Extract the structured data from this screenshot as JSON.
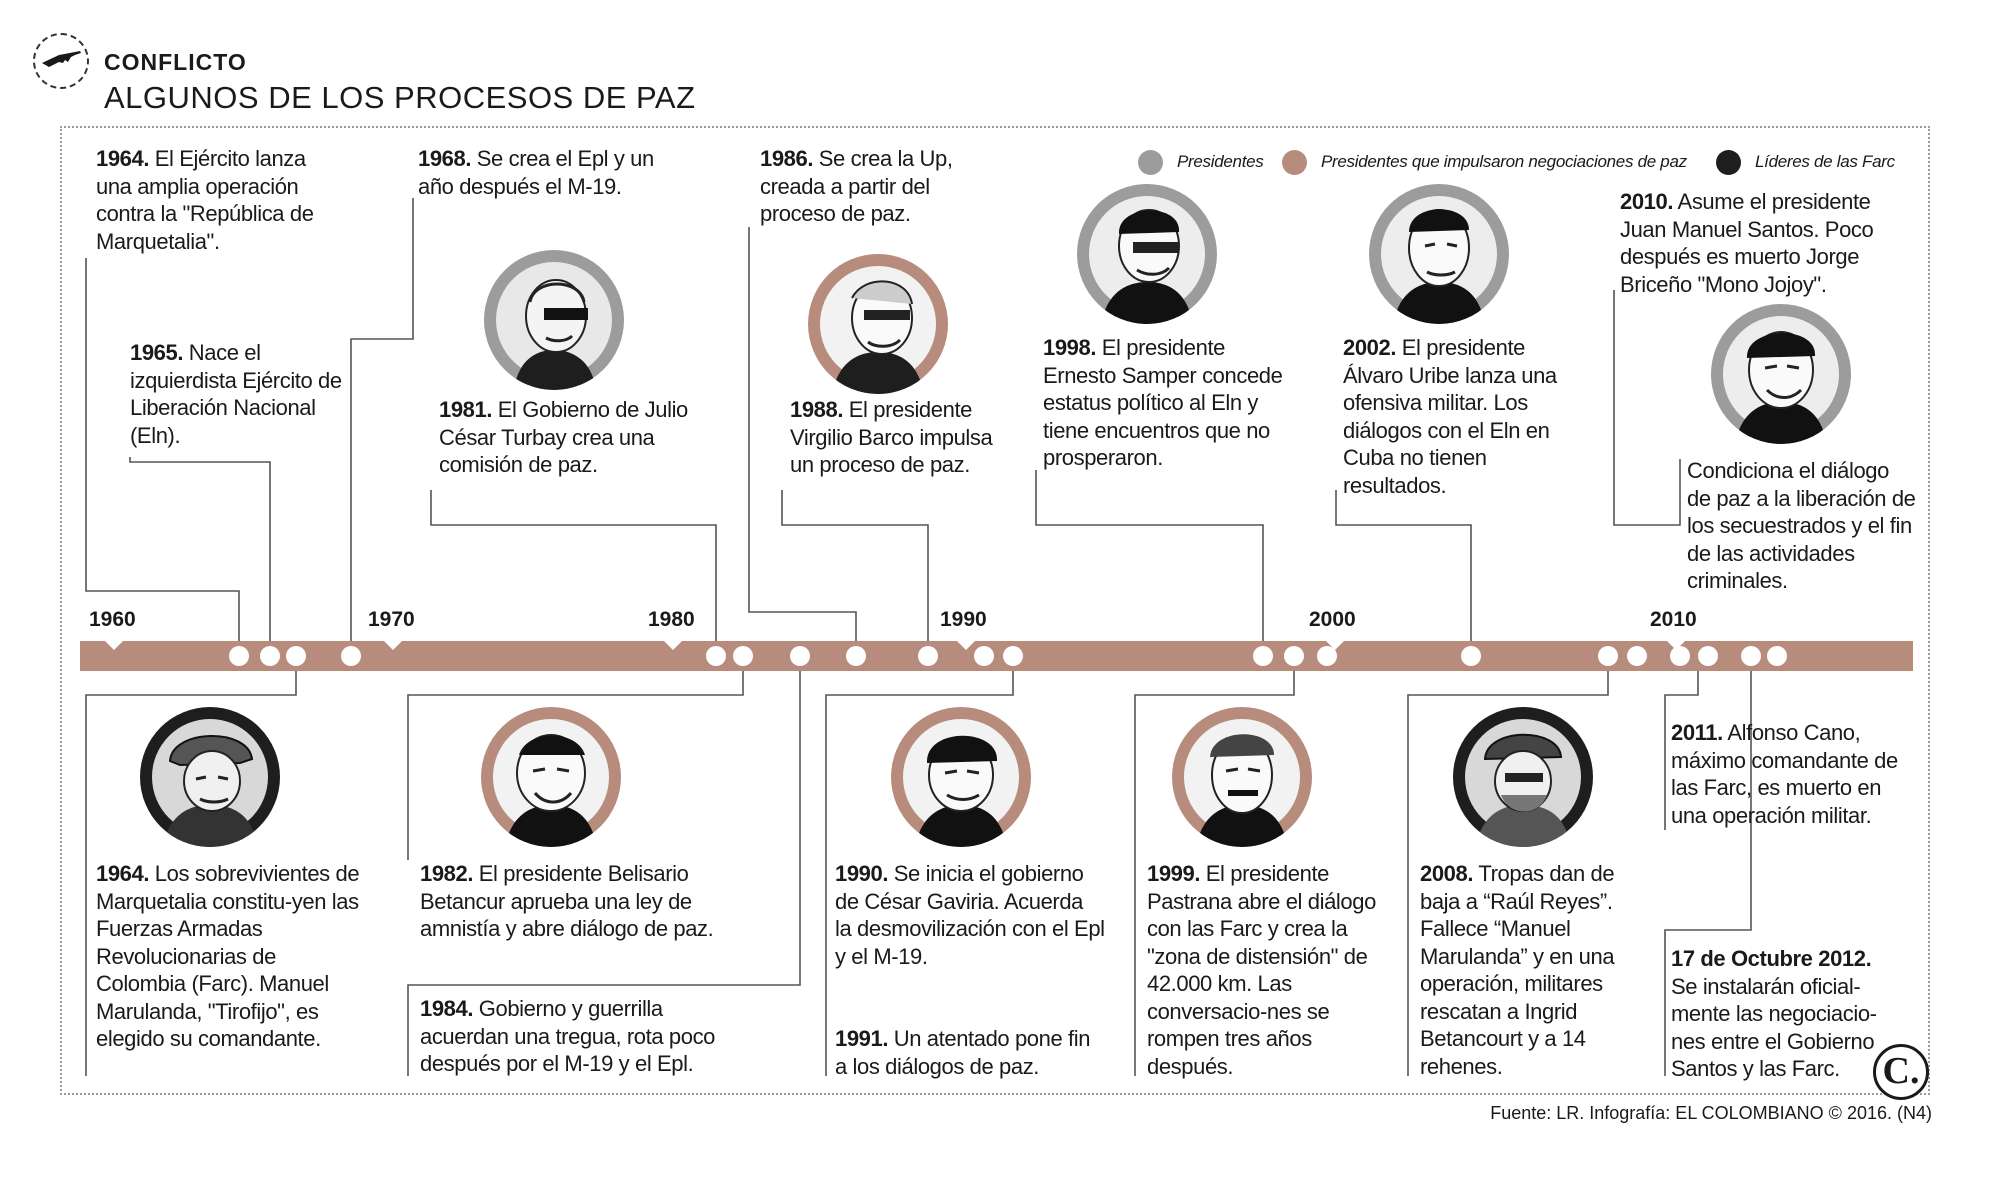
{
  "header": {
    "kicker": "CONFLICTO",
    "title": "ALGUNOS DE LOS PROCESOS DE PAZ",
    "icon": "rifle-icon"
  },
  "legend": [
    {
      "label": "Presidentes",
      "color": "#9c9c9c"
    },
    {
      "label": "Presidentes que impulsaron negociaciones de paz",
      "color": "#b88c7c"
    },
    {
      "label": "Líderes de las Farc",
      "color": "#1e1e1e"
    }
  ],
  "timeline": {
    "bar_color": "#b88c7c",
    "years": [
      "1960",
      "1970",
      "1980",
      "1990",
      "2000",
      "2010"
    ]
  },
  "events_top": [
    {
      "year": "1964.",
      "text": " El Ejército lanza una amplia operación contra la \"República de Marquetalia\"."
    },
    {
      "year": "1965.",
      "text": " Nace el izquierdista Ejército de Liberación Nacional (Eln)."
    },
    {
      "year": "1968.",
      "text": " Se crea el Epl y un año después el M-19."
    },
    {
      "year": "1981.",
      "text": " El Gobierno de Julio César Turbay crea una comisión de paz."
    },
    {
      "year": "1986.",
      "text": " Se crea la Up, creada a partir del proceso de paz."
    },
    {
      "year": "1988.",
      "text": " El presidente Virgilio Barco impulsa un proceso de paz."
    },
    {
      "year": "1998.",
      "text": " El presidente Ernesto Samper concede estatus político al Eln y tiene encuentros que no prosperaron."
    },
    {
      "year": "2002.",
      "text": " El presidente Álvaro Uribe lanza una ofensiva militar. Los diálogos con el Eln en Cuba no tienen resultados."
    },
    {
      "year": "2010.",
      "text": " Asume el presidente Juan Manuel Santos. Poco después es muerto Jorge Briceño \"Mono Jojoy\"."
    },
    {
      "year": "",
      "text": "Condiciona el diálogo de paz a la liberación de los secuestrados y el fin de las actividades criminales."
    }
  ],
  "events_bottom": [
    {
      "year": "1964.",
      "text": " Los sobrevivientes de Marquetalia constitu-yen las Fuerzas Armadas Revolucionarias de Colombia (Farc). Manuel Marulanda, \"Tirofijo\", es elegido su comandante."
    },
    {
      "year": "1982.",
      "text": " El presidente Belisario Betancur aprueba una ley de amnistía y abre diálogo de paz."
    },
    {
      "year": "1984.",
      "text": " Gobierno y guerrilla acuerdan una tregua, rota poco después por el M-19 y el Epl."
    },
    {
      "year": "1990.",
      "text": " Se inicia el gobierno de César Gaviria. Acuerda la desmovilización con el Epl y el M-19."
    },
    {
      "year": "1991.",
      "text": " Un atentado pone fin a los diálogos de paz."
    },
    {
      "year": "1999.",
      "text": " El presidente Pastrana abre el diálogo con las Farc y crea la \"zona de distensión\" de 42.000 km. Las conversacio-nes se rompen tres años después."
    },
    {
      "year": "2008.",
      "text": " Tropas dan de baja a “Raúl Reyes”. Fallece “Manuel Marulanda” y en una operación, militares rescatan a Ingrid Betancourt y a 14 rehenes."
    },
    {
      "year": "2011.",
      "text": " Alfonso Cano, máximo comandante de las Farc, es muerto en una operación militar."
    },
    {
      "year": "17 de Octubre 2012.",
      "text": " Se instalarán oficial-mente las negociacio-nes entre el Gobierno Santos y las Farc."
    }
  ],
  "portraits": [
    {
      "name": "portrait-turbay",
      "ring": "#9c9c9c"
    },
    {
      "name": "portrait-barco",
      "ring": "#b88c7c"
    },
    {
      "name": "portrait-samper",
      "ring": "#9c9c9c"
    },
    {
      "name": "portrait-uribe",
      "ring": "#9c9c9c"
    },
    {
      "name": "portrait-santos",
      "ring": "#9c9c9c"
    },
    {
      "name": "portrait-marulanda",
      "ring": "#1e1e1e"
    },
    {
      "name": "portrait-betancur",
      "ring": "#b88c7c"
    },
    {
      "name": "portrait-gaviria",
      "ring": "#b88c7c"
    },
    {
      "name": "portrait-pastrana",
      "ring": "#b88c7c"
    },
    {
      "name": "portrait-reyes",
      "ring": "#1e1e1e"
    }
  ],
  "footer": {
    "source": "Fuente: LR. Infografía: EL COLOMBIANO © 2016. (N4)",
    "logo": "C."
  }
}
